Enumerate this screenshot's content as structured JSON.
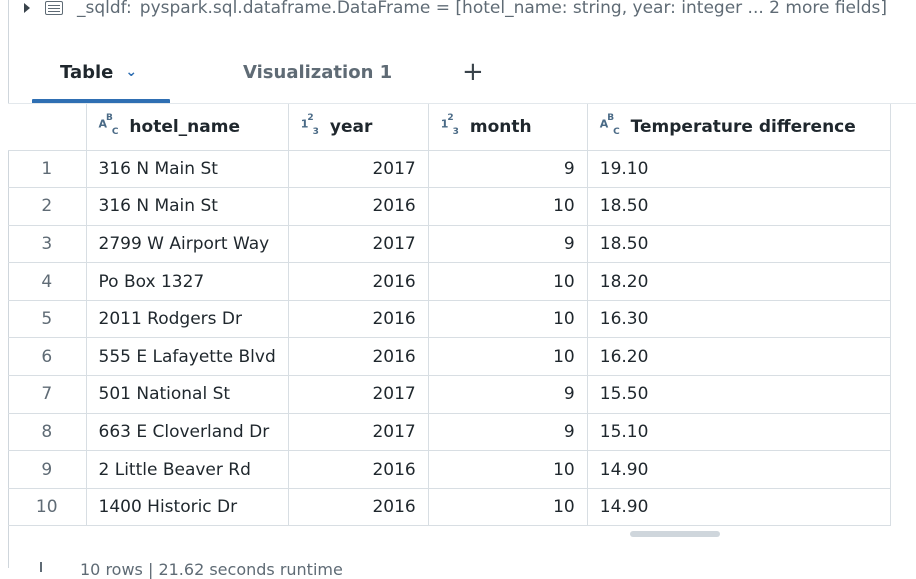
{
  "dataframe": {
    "name": "_sqldf:",
    "signature": "pyspark.sql.dataframe.DataFrame = [hotel_name: string, year: integer ... 2 more fields]"
  },
  "tabs": {
    "table_label": "Table",
    "viz_label": "Visualization 1",
    "add_label": "+"
  },
  "columns": [
    {
      "name": "hotel_name",
      "type_icon": "string-type-icon"
    },
    {
      "name": "year",
      "type_icon": "integer-type-icon"
    },
    {
      "name": "month",
      "type_icon": "integer-type-icon"
    },
    {
      "name": "Temperature difference",
      "type_icon": "string-type-icon"
    }
  ],
  "rows": [
    {
      "idx": "1",
      "hotel_name": "316 N Main St",
      "year": "2017",
      "month": "9",
      "temp": "19.10"
    },
    {
      "idx": "2",
      "hotel_name": "316 N Main St",
      "year": "2016",
      "month": "10",
      "temp": "18.50"
    },
    {
      "idx": "3",
      "hotel_name": "2799 W Airport Way",
      "year": "2017",
      "month": "9",
      "temp": "18.50"
    },
    {
      "idx": "4",
      "hotel_name": "Po Box 1327",
      "year": "2016",
      "month": "10",
      "temp": "18.20"
    },
    {
      "idx": "5",
      "hotel_name": "2011 Rodgers Dr",
      "year": "2016",
      "month": "10",
      "temp": "16.30"
    },
    {
      "idx": "6",
      "hotel_name": "555 E Lafayette Blvd",
      "year": "2016",
      "month": "10",
      "temp": "16.20"
    },
    {
      "idx": "7",
      "hotel_name": "501 National St",
      "year": "2017",
      "month": "9",
      "temp": "15.50"
    },
    {
      "idx": "8",
      "hotel_name": "663 E Cloverland Dr",
      "year": "2017",
      "month": "9",
      "temp": "15.10"
    },
    {
      "idx": "9",
      "hotel_name": "2 Little Beaver Rd",
      "year": "2016",
      "month": "10",
      "temp": "14.90"
    },
    {
      "idx": "10",
      "hotel_name": "1400 Historic Dr",
      "year": "2016",
      "month": "10",
      "temp": "14.90"
    }
  ],
  "footer": {
    "text": "10 rows | 21.62 seconds runtime"
  },
  "colors": {
    "accent": "#2f6fb3",
    "border": "#d8dee3"
  }
}
